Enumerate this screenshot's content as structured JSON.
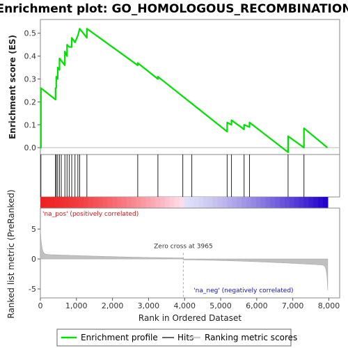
{
  "chart_data": {
    "type": "line",
    "title": "Enrichment plot: GO_HOMOLOGOUS_RECOMBINATION",
    "top_panel": {
      "ylabel": "Enrichment score (ES)",
      "ylim": [
        -0.03,
        0.56
      ],
      "yticks": [
        "0.0",
        "0.1",
        "0.2",
        "0.3",
        "0.4",
        "0.5"
      ],
      "series": [
        {
          "name": "Enrichment profile",
          "color": "#00e000",
          "x": [
            0,
            15,
            15,
            420,
            420,
            440,
            440,
            480,
            480,
            530,
            530,
            580,
            580,
            680,
            680,
            740,
            740,
            800,
            800,
            870,
            870,
            960,
            960,
            1040,
            1040,
            1090,
            1090,
            1290,
            1290,
            2700,
            2700,
            3260,
            3260,
            5180,
            5180,
            5300,
            5300,
            5650,
            5650,
            5800,
            5800,
            6870,
            6870,
            7310,
            7310,
            7960
          ],
          "y": [
            0.0,
            0.0,
            0.26,
            0.21,
            0.26,
            0.26,
            0.31,
            0.3,
            0.35,
            0.34,
            0.39,
            0.38,
            0.38,
            0.36,
            0.42,
            0.4,
            0.45,
            0.44,
            0.44,
            0.44,
            0.48,
            0.46,
            0.46,
            0.49,
            0.49,
            0.52,
            0.52,
            0.48,
            0.52,
            0.36,
            0.37,
            0.3,
            0.31,
            0.07,
            0.11,
            0.1,
            0.12,
            0.08,
            0.1,
            0.09,
            0.11,
            -0.02,
            0.05,
            0.0,
            0.085,
            0.0
          ]
        }
      ]
    },
    "hits": {
      "name": "Hits",
      "positions": [
        15,
        420,
        440,
        480,
        530,
        580,
        680,
        740,
        800,
        870,
        960,
        1040,
        1090,
        1290,
        2700,
        3260,
        3950,
        4200,
        5180,
        5300,
        5650,
        5800,
        6870,
        7310
      ]
    },
    "ranking_bar": {
      "label_pos": "'na_pos' (positively correlated)",
      "label_neg": "'na_neg' (negatively correlated)",
      "pos_color": "#ee2222",
      "neg_color": "#2200cc"
    },
    "bottom_panel": {
      "name": "Ranking metric scores",
      "ylabel": "Ranked list metric (PreRanked)",
      "ylim": [
        -6.5,
        8.5
      ],
      "yticks": [
        "-5",
        "0",
        "5"
      ],
      "zero_cross": 3965,
      "zero_cross_label": "Zero cross at 3965"
    },
    "x_axis": {
      "label": "Rank in Ordered Dataset",
      "range": [
        0,
        8300
      ],
      "ticks": [
        "0",
        "1,000",
        "2,000",
        "3,000",
        "4,000",
        "5,000",
        "6,000",
        "7,000",
        "8,000"
      ],
      "n": 7970
    },
    "legend": {
      "placement": "bottom",
      "items": [
        "Enrichment profile",
        "Hits",
        "Ranking metric scores"
      ]
    }
  }
}
